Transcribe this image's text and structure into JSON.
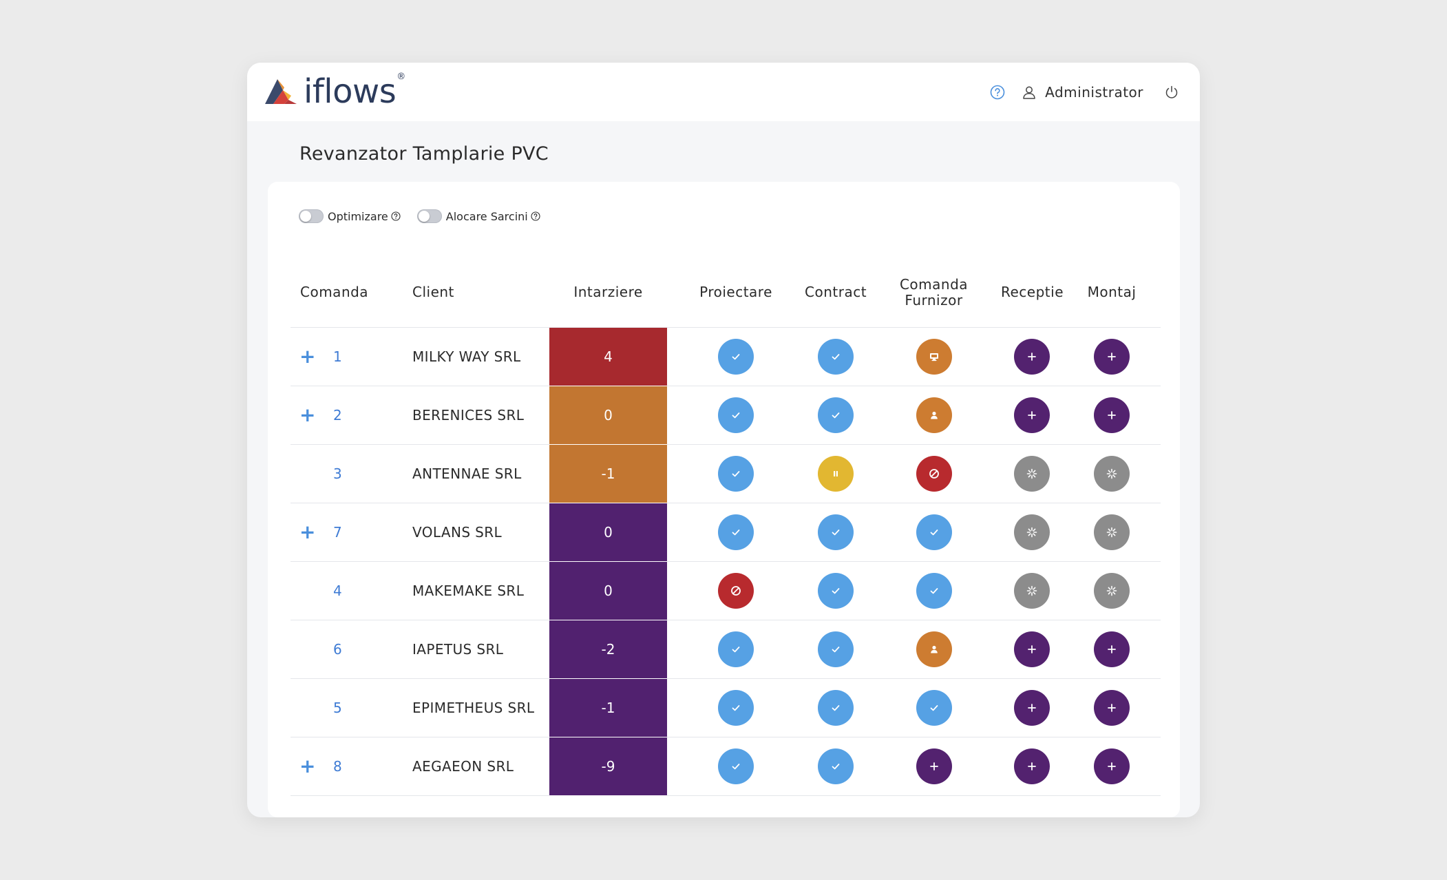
{
  "app": {
    "logo_text": "iflows",
    "logo_mark": "®",
    "user_name": "Administrator"
  },
  "page": {
    "title": "Revanzator Tamplarie PVC"
  },
  "toggles": [
    {
      "label": "Optimizare",
      "on": false
    },
    {
      "label": "Alocare Sarcini",
      "on": false
    }
  ],
  "table": {
    "columns": {
      "comanda": "Comanda",
      "client": "Client",
      "intarziere": "Intarziere",
      "proiectare": "Proiectare",
      "contract": "Contract",
      "comanda_furnizor_1": "Comanda",
      "comanda_furnizor_2": "Furnizor",
      "receptie": "Receptie",
      "montaj": "Montaj"
    },
    "rows": [
      {
        "expandable": true,
        "order": "1",
        "client": "MILKY WAY SRL",
        "delay": "4",
        "delay_color": "#a7292e",
        "statuses": [
          "done",
          "done",
          "display",
          "add",
          "add"
        ]
      },
      {
        "expandable": true,
        "order": "2",
        "client": "BERENICES SRL",
        "delay": "0",
        "delay_color": "#c27631",
        "statuses": [
          "done",
          "done",
          "person",
          "add",
          "add"
        ]
      },
      {
        "expandable": false,
        "order": "3",
        "client": "ANTENNAE SRL",
        "delay": "-1",
        "delay_color": "#c27631",
        "statuses": [
          "done",
          "paused",
          "blocked",
          "pending",
          "pending"
        ]
      },
      {
        "expandable": true,
        "order": "7",
        "client": "VOLANS SRL",
        "delay": "0",
        "delay_color": "#51216f",
        "statuses": [
          "done",
          "done",
          "done",
          "pending",
          "pending"
        ]
      },
      {
        "expandable": false,
        "order": "4",
        "client": "MAKEMAKE SRL",
        "delay": "0",
        "delay_color": "#51216f",
        "statuses": [
          "blocked",
          "done",
          "done",
          "pending",
          "pending"
        ]
      },
      {
        "expandable": false,
        "order": "6",
        "client": "IAPETUS SRL",
        "delay": "-2",
        "delay_color": "#51216f",
        "statuses": [
          "done",
          "done",
          "person",
          "add",
          "add"
        ]
      },
      {
        "expandable": false,
        "order": "5",
        "client": "EPIMETHEUS SRL",
        "delay": "-1",
        "delay_color": "#51216f",
        "statuses": [
          "done",
          "done",
          "done",
          "add",
          "add"
        ]
      },
      {
        "expandable": true,
        "order": "8",
        "client": "AEGAEON SRL",
        "delay": "-9",
        "delay_color": "#51216f",
        "statuses": [
          "done",
          "done",
          "add",
          "add",
          "add"
        ]
      }
    ]
  },
  "icons": {
    "topbar": [
      "help-icon",
      "user-icon",
      "power-icon"
    ],
    "status_map": {
      "done": {
        "icon": "check-icon",
        "color": "#56a1e4"
      },
      "display": {
        "icon": "monitor-icon",
        "color": "#cd7c31"
      },
      "person": {
        "icon": "person-icon",
        "color": "#cd7c31"
      },
      "add": {
        "icon": "plus-icon",
        "color": "#53226f"
      },
      "paused": {
        "icon": "pause-icon",
        "color": "#e2b731"
      },
      "blocked": {
        "icon": "blocked-icon",
        "color": "#b82a2e"
      },
      "pending": {
        "icon": "spinner-icon",
        "color": "#8c8c8c"
      }
    }
  }
}
